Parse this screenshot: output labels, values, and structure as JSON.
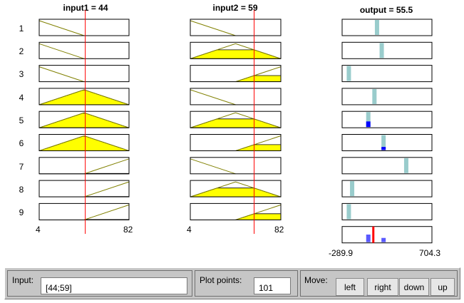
{
  "inputs": [
    {
      "title": "input1 = 44",
      "min": 4,
      "max": 82,
      "min_label": "4",
      "max_label": "82",
      "value": 44
    },
    {
      "title": "input2 = 59",
      "min": 4,
      "max": 82,
      "min_label": "4",
      "max_label": "82",
      "value": 59
    }
  ],
  "output": {
    "title": "output = 55.5",
    "min": -289.9,
    "max": 704.3,
    "min_label": "-289.9",
    "max_label": "704.3",
    "value": 55.5
  },
  "rule_numbers": [
    "1",
    "2",
    "3",
    "4",
    "5",
    "6",
    "7",
    "8",
    "9"
  ],
  "rules": [
    {
      "in1": "low",
      "in2": "low",
      "out": 96.4,
      "fire": 0
    },
    {
      "in1": "low",
      "in2": "mid",
      "out": 148.6,
      "fire": 0
    },
    {
      "in1": "low",
      "in2": "high",
      "out": -215.4,
      "fire": 0
    },
    {
      "in1": "mid",
      "in2": "low",
      "out": 67.9,
      "fire": 0
    },
    {
      "in1": "mid",
      "in2": "mid",
      "out": 0.0,
      "fire": 0.68
    },
    {
      "in1": "mid",
      "in2": "high",
      "out": 169.0,
      "fire": 0.38
    },
    {
      "in1": "high",
      "in2": "low",
      "out": 419.8,
      "fire": 0
    },
    {
      "in1": "high",
      "in2": "mid",
      "out": -179.1,
      "fire": 0
    },
    {
      "in1": "high",
      "in2": "high",
      "out": -215.4,
      "fire": 0
    }
  ],
  "aggregate": [
    {
      "value": 0.0,
      "height": 0.68
    },
    {
      "value": 169.0,
      "height": 0.38
    }
  ],
  "bottom": {
    "input_label": "Input:",
    "input_value": "[44;59]",
    "plot_points_label": "Plot points:",
    "plot_points_value": "101",
    "move_label": "Move:",
    "buttons": {
      "left": "left",
      "right": "right",
      "down": "down",
      "up": "up"
    }
  },
  "colors": {
    "fill": "#ffff00",
    "mf_line": "#808000",
    "cursor": "#ff0000",
    "output_bar": "#99cccc",
    "fired": "#0000ff",
    "agg": "#5a5aff"
  }
}
